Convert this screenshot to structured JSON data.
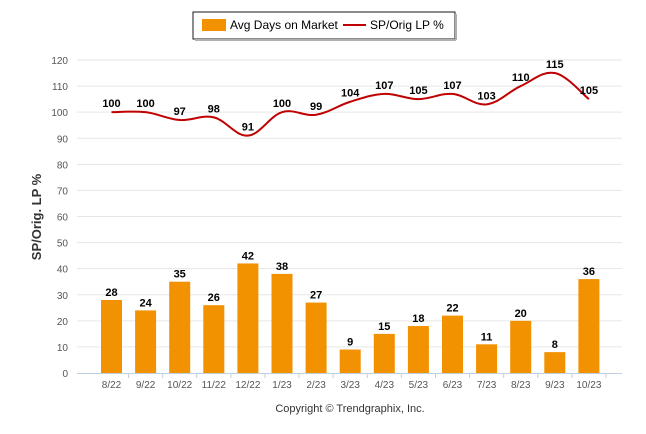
{
  "chart_data": {
    "type": "bar",
    "categories": [
      "8/22",
      "9/22",
      "10/22",
      "11/22",
      "12/22",
      "1/23",
      "2/23",
      "3/23",
      "4/23",
      "5/23",
      "6/23",
      "7/23",
      "8/23",
      "9/23",
      "10/23"
    ],
    "series": [
      {
        "name": "Avg Days on Market",
        "type": "bar",
        "color": "#f39200",
        "values": [
          28,
          24,
          35,
          26,
          42,
          38,
          27,
          9,
          15,
          18,
          22,
          11,
          20,
          8,
          36
        ]
      },
      {
        "name": "SP/Orig LP %",
        "type": "line",
        "color": "#c00000",
        "values": [
          100,
          100,
          97,
          98,
          91,
          100,
          99,
          104,
          107,
          105,
          107,
          103,
          110,
          115,
          105
        ]
      }
    ],
    "ylabel": "SP/Orig. LP %",
    "ylim": [
      0,
      120
    ],
    "yticks": [
      0,
      10,
      20,
      30,
      40,
      50,
      60,
      70,
      80,
      90,
      100,
      110,
      120
    ],
    "grid": true,
    "legend_position": "top-center"
  },
  "credits": "Copyright © Trendgraphix, Inc."
}
